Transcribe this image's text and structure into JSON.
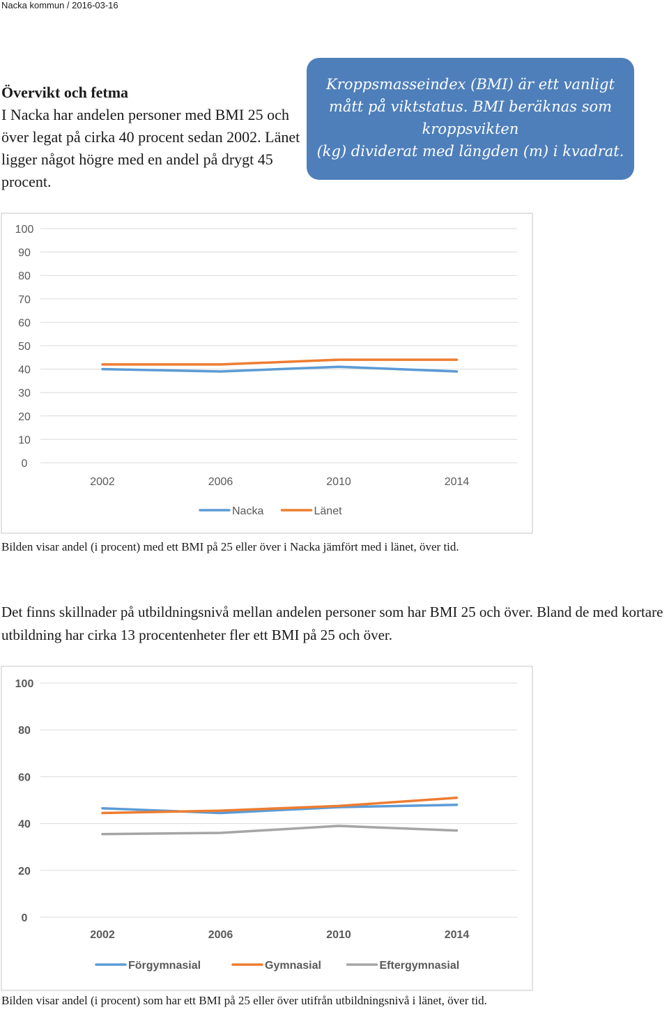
{
  "header": {
    "text": "Nacka kommun  /  2016-03-16"
  },
  "intro": {
    "heading": "Övervikt och fetma",
    "body": "I Nacka har andelen personer med BMI 25 och över legat på cirka 40 procent sedan 2002. Länet ligger något högre med en andel på drygt 45 procent."
  },
  "info_box": {
    "line1": "Kroppsmasseindex (BMI) är ett vanligt",
    "line2": "mått på viktstatus. BMI beräknas som",
    "line3": "kroppsvikten",
    "line4": "(kg) dividerat med längden (m) i kvadrat."
  },
  "caption1": "Bilden visar andel (i procent) med ett BMI på 25 eller över i Nacka jämfört med i länet, över tid.",
  "paragraph": "Det finns skillnader på utbildningsnivå mellan andelen personer som har BMI 25 och över. Bland de med kortare utbildning har cirka 13 procentenheter fler ett BMI på 25 och över.",
  "caption2": "Bilden visar andel (i procent) som har ett BMI på 25 eller över utifrån utbildningsnivå i länet, över tid.",
  "chart_data": [
    {
      "type": "line",
      "categories": [
        "2002",
        "2006",
        "2010",
        "2014"
      ],
      "ylim": [
        0,
        100
      ],
      "yticks": [
        0,
        10,
        20,
        30,
        40,
        50,
        60,
        70,
        80,
        90,
        100
      ],
      "grid": true,
      "legend": "bottom",
      "series": [
        {
          "name": "Nacka",
          "color": "#5b9bd5",
          "values": [
            40,
            39,
            41,
            39
          ]
        },
        {
          "name": "Länet",
          "color": "#ed7d31",
          "values": [
            42,
            42,
            44,
            44
          ]
        }
      ]
    },
    {
      "type": "line",
      "categories": [
        "2002",
        "2006",
        "2010",
        "2014"
      ],
      "ylim": [
        0,
        100
      ],
      "yticks": [
        0,
        20,
        40,
        60,
        80,
        100
      ],
      "grid": true,
      "legend": "bottom",
      "series": [
        {
          "name": "Förgymnasial",
          "color": "#5b9bd5",
          "values": [
            46.5,
            44.5,
            47,
            48
          ]
        },
        {
          "name": "Gymnasial",
          "color": "#ed7d31",
          "values": [
            44.5,
            45.5,
            47.5,
            51
          ]
        },
        {
          "name": "Eftergymnasial",
          "color": "#a5a5a5",
          "values": [
            35.5,
            36,
            39,
            37
          ]
        }
      ]
    }
  ]
}
